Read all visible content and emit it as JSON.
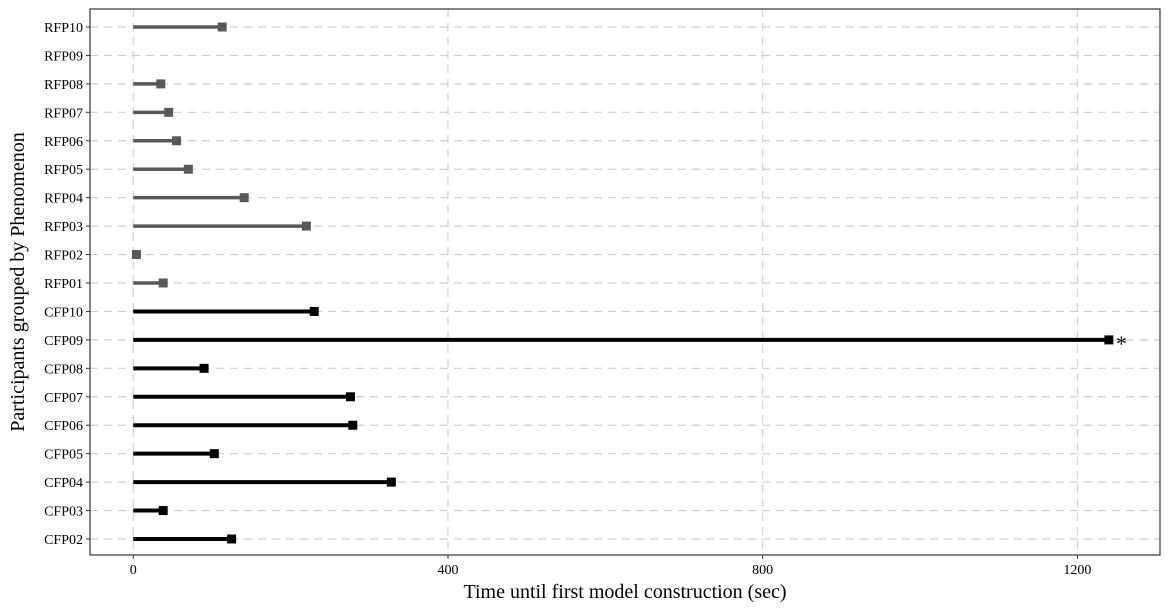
{
  "chart_data": {
    "type": "bar",
    "orientation": "horizontal",
    "style": "lollipop with square end markers",
    "xlabel": "Time until first model construction (sec)",
    "ylabel": "Participants grouped by Phenomenon",
    "xlim": [
      -55,
      1305
    ],
    "x_ticks": [
      0,
      400,
      800,
      1200
    ],
    "grid": true,
    "legend": "none",
    "categories": [
      "CFP02",
      "CFP03",
      "CFP04",
      "CFP05",
      "CFP06",
      "CFP07",
      "CFP08",
      "CFP09",
      "CFP10",
      "RFP01",
      "RFP02",
      "RFP03",
      "RFP04",
      "RFP05",
      "RFP06",
      "RFP07",
      "RFP08",
      "RFP09",
      "RFP10"
    ],
    "series": [
      {
        "group": "CFP",
        "color": "#000000",
        "points": [
          {
            "category": "CFP02",
            "value": 125
          },
          {
            "category": "CFP03",
            "value": 38
          },
          {
            "category": "CFP04",
            "value": 328
          },
          {
            "category": "CFP05",
            "value": 103
          },
          {
            "category": "CFP06",
            "value": 279
          },
          {
            "category": "CFP07",
            "value": 276
          },
          {
            "category": "CFP08",
            "value": 90
          },
          {
            "category": "CFP09",
            "value": 1240,
            "annotation": "*"
          },
          {
            "category": "CFP10",
            "value": 230
          }
        ]
      },
      {
        "group": "RFP",
        "color": "#595959",
        "points": [
          {
            "category": "RFP01",
            "value": 38
          },
          {
            "category": "RFP02",
            "value": 4
          },
          {
            "category": "RFP03",
            "value": 220
          },
          {
            "category": "RFP04",
            "value": 141
          },
          {
            "category": "RFP05",
            "value": 70
          },
          {
            "category": "RFP06",
            "value": 55
          },
          {
            "category": "RFP07",
            "value": 45
          },
          {
            "category": "RFP08",
            "value": 35
          },
          {
            "category": "RFP10",
            "value": 113
          }
        ]
      }
    ]
  }
}
